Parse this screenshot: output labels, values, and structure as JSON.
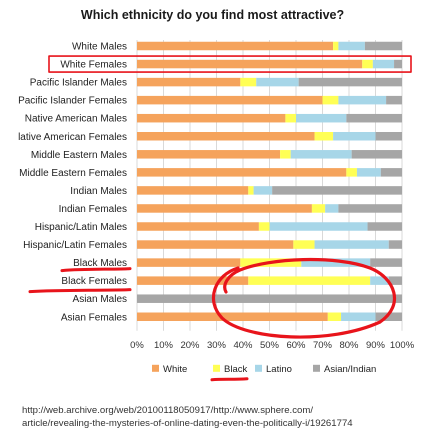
{
  "title": "Which ethnicity do you find most attractive?",
  "source": {
    "line1": "http://web.archive.org/web/20100118050917/http://www.sphere.com/",
    "line2": "article/revealing-the-mysteries-of-online-dating-even-the-politically-i/19261774"
  },
  "colors": {
    "White": "#f5a35c",
    "Black": "#ffff55",
    "Latino": "#a7d6e8",
    "Asian/Indian": "#a6a6a6",
    "grid": "#d9d9d9",
    "annotation": "#e8141b"
  },
  "chart_data": {
    "type": "bar",
    "orientation": "horizontal",
    "stacked": true,
    "title": "Which ethnicity do you find most attractive?",
    "categories": [
      "White Males",
      "White Females",
      "Pacific Islander Males",
      "Pacific Islander Females",
      "Native American Males",
      "lative American Females",
      "Middle Eastern Males",
      "Middle Eastern Females",
      "Indian Males",
      "Indian Females",
      "Hispanic/Latin Males",
      "Hispanic/Latin Females",
      "Black Males",
      "Black Females",
      "Asian Males",
      "Asian Females"
    ],
    "series": [
      {
        "name": "White",
        "values": [
          74,
          85,
          39,
          70,
          56,
          67,
          54,
          79,
          42,
          66,
          46,
          59,
          39,
          42,
          0,
          72
        ]
      },
      {
        "name": "Black",
        "values": [
          2,
          4,
          6,
          6,
          4,
          7,
          4,
          4,
          2,
          5,
          4,
          8,
          23,
          46,
          0,
          5
        ]
      },
      {
        "name": "Latino",
        "values": [
          10,
          8,
          16,
          18,
          19,
          16,
          23,
          9,
          7,
          5,
          37,
          28,
          26,
          7,
          0,
          13
        ]
      },
      {
        "name": "Asian/Indian",
        "values": [
          14,
          3,
          39,
          6,
          21,
          10,
          19,
          8,
          49,
          24,
          13,
          5,
          12,
          5,
          100,
          10
        ]
      }
    ],
    "xlim": [
      0,
      100
    ],
    "xticks": [
      "0%",
      "10%",
      "20%",
      "30%",
      "40%",
      "50%",
      "60%",
      "70%",
      "80%",
      "90%",
      "100%"
    ],
    "legend": {
      "position": "bottom",
      "entries": [
        "White",
        "Black",
        "Latino",
        "Asian/Indian"
      ]
    },
    "grid": true
  }
}
